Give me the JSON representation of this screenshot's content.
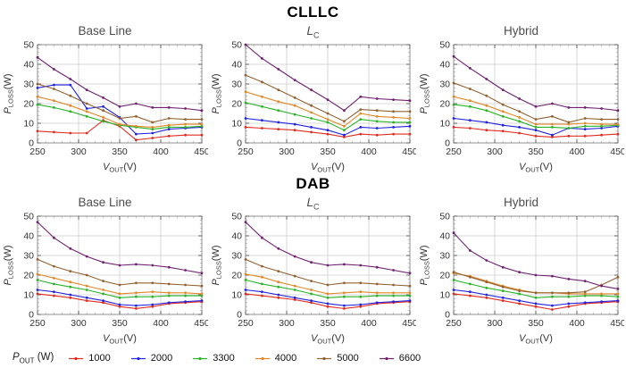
{
  "groups": [
    {
      "label": "CLLLC"
    },
    {
      "label": "DAB"
    }
  ],
  "legend": {
    "label_main": "P",
    "label_sub": "OUT",
    "label_unit": " (W)",
    "entries": [
      {
        "name": "1000",
        "color": "#e02b20"
      },
      {
        "name": "2000",
        "color": "#2222e0"
      },
      {
        "name": "3300",
        "color": "#28b428"
      },
      {
        "name": "4000",
        "color": "#e08828"
      },
      {
        "name": "5000",
        "color": "#926130"
      },
      {
        "name": "6600",
        "color": "#702270"
      }
    ]
  },
  "chart_data": [
    {
      "type": "line",
      "group": "CLLLC",
      "title_main": "Base Line",
      "title_sub": "",
      "title_italic": false,
      "xlabel_main": "V",
      "xlabel_sub": "OUT",
      "xlabel_unit": "(V)",
      "ylabel_main": "P",
      "ylabel_sub": "LOSS",
      "ylabel_unit": "(W)",
      "xlim": [
        250,
        450
      ],
      "ylim": [
        0,
        50
      ],
      "xticks": [
        250,
        300,
        350,
        400,
        450
      ],
      "yticks": [
        0,
        10,
        20,
        30,
        40,
        50
      ],
      "x_minor_step": 10,
      "y_minor_step": 2,
      "grid": true,
      "x": [
        250,
        270,
        290,
        310,
        330,
        350,
        370,
        390,
        410,
        430,
        450
      ],
      "series": [
        {
          "name": "1000",
          "color": "#e02b20",
          "values": [
            6,
            5.5,
            5,
            5,
            11.5,
            8.5,
            1.5,
            2.5,
            3.5,
            4,
            4
          ]
        },
        {
          "name": "2000",
          "color": "#2222e0",
          "values": [
            28,
            29.5,
            29.5,
            17.5,
            18.5,
            13,
            4.5,
            5,
            7,
            7.5,
            8
          ]
        },
        {
          "name": "3300",
          "color": "#28b428",
          "values": [
            19.5,
            18,
            16,
            13.5,
            11,
            9,
            8,
            7,
            8,
            8,
            8.5
          ]
        },
        {
          "name": "4000",
          "color": "#e08828",
          "values": [
            23.5,
            21.5,
            19,
            16,
            13,
            9.5,
            8.5,
            8,
            9,
            9.5,
            9.5
          ]
        },
        {
          "name": "5000",
          "color": "#926130",
          "values": [
            30,
            27.5,
            24,
            20,
            16.5,
            12.5,
            13.5,
            10.5,
            12.5,
            12,
            12
          ]
        },
        {
          "name": "6600",
          "color": "#702270",
          "values": [
            43.5,
            37.5,
            32.5,
            27,
            23,
            18.5,
            20,
            18,
            18,
            17.5,
            16.5
          ]
        }
      ]
    },
    {
      "type": "line",
      "group": "CLLLC",
      "title_main": "L",
      "title_sub": "C",
      "title_italic": true,
      "xlabel_main": "V",
      "xlabel_sub": "OUT",
      "xlabel_unit": "(V)",
      "ylabel_main": "P",
      "ylabel_sub": "LOSS",
      "ylabel_unit": "(W)",
      "xlim": [
        250,
        450
      ],
      "ylim": [
        0,
        50
      ],
      "xticks": [
        250,
        300,
        350,
        400,
        450
      ],
      "yticks": [
        0,
        10,
        20,
        30,
        40,
        50
      ],
      "x_minor_step": 10,
      "y_minor_step": 2,
      "grid": true,
      "x": [
        250,
        270,
        290,
        310,
        330,
        350,
        370,
        390,
        410,
        430,
        450
      ],
      "series": [
        {
          "name": "1000",
          "color": "#e02b20",
          "values": [
            8,
            7.5,
            7,
            6.5,
            5.5,
            4.5,
            3,
            4.5,
            4,
            4.5,
            4.5
          ]
        },
        {
          "name": "2000",
          "color": "#2222e0",
          "values": [
            12.5,
            11.5,
            10.5,
            9.5,
            8,
            6.5,
            4,
            8,
            7.5,
            8,
            8.5
          ]
        },
        {
          "name": "3300",
          "color": "#28b428",
          "values": [
            20.5,
            18.5,
            16.5,
            14.5,
            12.5,
            10.5,
            6.5,
            12,
            11,
            10.5,
            10.5
          ]
        },
        {
          "name": "4000",
          "color": "#e08828",
          "values": [
            26,
            23.5,
            21,
            19,
            15.5,
            12,
            8.5,
            15,
            13.5,
            13,
            12.5
          ]
        },
        {
          "name": "5000",
          "color": "#926130",
          "values": [
            34.5,
            31,
            27,
            23,
            19,
            15,
            11,
            17,
            16.5,
            16,
            16
          ]
        },
        {
          "name": "6600",
          "color": "#702270",
          "values": [
            50,
            43,
            37.5,
            32,
            27,
            22,
            16.5,
            23.5,
            22.5,
            22,
            21.5
          ]
        }
      ]
    },
    {
      "type": "line",
      "group": "CLLLC",
      "title_main": "Hybrid",
      "title_sub": "",
      "title_italic": false,
      "xlabel_main": "V",
      "xlabel_sub": "OUT",
      "xlabel_unit": "(V)",
      "ylabel_main": "P",
      "ylabel_sub": "LOSS",
      "ylabel_unit": "(W)",
      "xlim": [
        250,
        450
      ],
      "ylim": [
        0,
        50
      ],
      "xticks": [
        250,
        300,
        350,
        400,
        450
      ],
      "yticks": [
        0,
        10,
        20,
        30,
        40,
        50
      ],
      "x_minor_step": 10,
      "y_minor_step": 2,
      "grid": true,
      "x": [
        250,
        270,
        290,
        310,
        330,
        350,
        370,
        390,
        410,
        430,
        450
      ],
      "series": [
        {
          "name": "1000",
          "color": "#e02b20",
          "values": [
            8,
            7.5,
            6.5,
            6,
            5,
            3.5,
            3,
            3.5,
            3.5,
            4,
            4.5
          ]
        },
        {
          "name": "2000",
          "color": "#2222e0",
          "values": [
            12.5,
            11.5,
            10.5,
            9,
            8,
            6.5,
            4,
            7.5,
            7,
            7.5,
            8.5
          ]
        },
        {
          "name": "3300",
          "color": "#28b428",
          "values": [
            19.5,
            18.5,
            16.5,
            13.5,
            11,
            8,
            8,
            7.5,
            8.5,
            8.5,
            9
          ]
        },
        {
          "name": "4000",
          "color": "#e08828",
          "values": [
            23.5,
            21.5,
            19,
            16,
            13,
            9.5,
            9.5,
            9.5,
            10,
            9.5,
            9.5
          ]
        },
        {
          "name": "5000",
          "color": "#926130",
          "values": [
            30.5,
            27.5,
            24,
            19.5,
            16,
            12,
            13.5,
            10.5,
            12.5,
            12,
            12
          ]
        },
        {
          "name": "6600",
          "color": "#702270",
          "values": [
            44,
            38,
            32.5,
            27,
            22.5,
            18.5,
            20,
            18,
            18,
            17.5,
            16.5
          ]
        }
      ]
    },
    {
      "type": "line",
      "group": "DAB",
      "title_main": "Base Line",
      "title_sub": "",
      "title_italic": false,
      "xlabel_main": "V",
      "xlabel_sub": "OUT",
      "xlabel_unit": "(V)",
      "ylabel_main": "P",
      "ylabel_sub": "LOSS",
      "ylabel_unit": "(W)",
      "xlim": [
        250,
        450
      ],
      "ylim": [
        0,
        50
      ],
      "xticks": [
        250,
        300,
        350,
        400,
        450
      ],
      "yticks": [
        0,
        10,
        20,
        30,
        40,
        50
      ],
      "x_minor_step": 10,
      "y_minor_step": 2,
      "grid": true,
      "x": [
        250,
        270,
        290,
        310,
        330,
        350,
        370,
        390,
        410,
        430,
        450
      ],
      "series": [
        {
          "name": "1000",
          "color": "#e02b20",
          "values": [
            10.5,
            9.5,
            8.5,
            7,
            6,
            4,
            3,
            4,
            5.5,
            6,
            6.5
          ]
        },
        {
          "name": "2000",
          "color": "#2222e0",
          "values": [
            12.5,
            11.5,
            10,
            8.5,
            7,
            5,
            4.5,
            5,
            6,
            6.5,
            7
          ]
        },
        {
          "name": "3300",
          "color": "#28b428",
          "values": [
            17.5,
            15.5,
            14,
            12.5,
            10.5,
            8.5,
            9,
            9,
            9.5,
            9.5,
            9.5
          ]
        },
        {
          "name": "4000",
          "color": "#e08828",
          "values": [
            20.5,
            18.5,
            16.5,
            14.5,
            12.5,
            10.5,
            11,
            11.5,
            11,
            11,
            10.5
          ]
        },
        {
          "name": "5000",
          "color": "#926130",
          "values": [
            28,
            24.5,
            22,
            20,
            17,
            15,
            16,
            16,
            15.5,
            15,
            14.5
          ]
        },
        {
          "name": "6600",
          "color": "#702270",
          "values": [
            47,
            39,
            33.5,
            29.5,
            26.5,
            25,
            25.5,
            25,
            24,
            22.5,
            21
          ]
        }
      ]
    },
    {
      "type": "line",
      "group": "DAB",
      "title_main": "L",
      "title_sub": "C",
      "title_italic": true,
      "xlabel_main": "V",
      "xlabel_sub": "OUT",
      "xlabel_unit": "(V)",
      "ylabel_main": "P",
      "ylabel_sub": "LOSS",
      "ylabel_unit": "(W)",
      "xlim": [
        250,
        450
      ],
      "ylim": [
        0,
        50
      ],
      "xticks": [
        250,
        300,
        350,
        400,
        450
      ],
      "yticks": [
        0,
        10,
        20,
        30,
        40,
        50
      ],
      "x_minor_step": 10,
      "y_minor_step": 2,
      "grid": true,
      "x": [
        250,
        270,
        290,
        310,
        330,
        350,
        370,
        390,
        410,
        430,
        450
      ],
      "series": [
        {
          "name": "1000",
          "color": "#e02b20",
          "values": [
            10.5,
            9.5,
            8.5,
            7.5,
            6,
            4,
            3,
            4,
            5.5,
            6,
            6.5
          ]
        },
        {
          "name": "2000",
          "color": "#2222e0",
          "values": [
            12.5,
            11.5,
            10,
            8.5,
            7,
            5.5,
            4.5,
            5,
            6,
            6.5,
            7
          ]
        },
        {
          "name": "3300",
          "color": "#28b428",
          "values": [
            17.5,
            15.5,
            14,
            12.5,
            10.5,
            8.5,
            9,
            9,
            9.5,
            9.5,
            9.5
          ]
        },
        {
          "name": "4000",
          "color": "#e08828",
          "values": [
            20.5,
            19,
            16.5,
            14.5,
            12.5,
            10.5,
            11,
            11.5,
            11,
            11,
            11
          ]
        },
        {
          "name": "5000",
          "color": "#926130",
          "values": [
            28,
            24.5,
            22,
            19.5,
            17,
            15,
            16,
            16,
            15.5,
            15,
            14.5
          ]
        },
        {
          "name": "6600",
          "color": "#702270",
          "values": [
            47,
            39,
            33.5,
            29.5,
            26.5,
            25,
            25.5,
            25,
            24,
            22.5,
            21
          ]
        }
      ]
    },
    {
      "type": "line",
      "group": "DAB",
      "title_main": "Hybrid",
      "title_sub": "",
      "title_italic": false,
      "xlabel_main": "V",
      "xlabel_sub": "OUT",
      "xlabel_unit": "(V)",
      "ylabel_main": "P",
      "ylabel_sub": "LOSS",
      "ylabel_unit": "(W)",
      "xlim": [
        250,
        450
      ],
      "ylim": [
        0,
        50
      ],
      "xticks": [
        250,
        300,
        350,
        400,
        450
      ],
      "yticks": [
        0,
        10,
        20,
        30,
        40,
        50
      ],
      "x_minor_step": 10,
      "y_minor_step": 2,
      "grid": true,
      "x": [
        250,
        270,
        290,
        310,
        330,
        350,
        370,
        390,
        410,
        430,
        450
      ],
      "series": [
        {
          "name": "1000",
          "color": "#e02b20",
          "values": [
            10.5,
            9.5,
            8.5,
            7,
            5.5,
            4,
            2.5,
            4,
            5.5,
            6,
            6.5
          ]
        },
        {
          "name": "2000",
          "color": "#2222e0",
          "values": [
            12.5,
            11.5,
            10,
            8.5,
            7,
            5.5,
            4.5,
            5.5,
            6,
            6.5,
            7
          ]
        },
        {
          "name": "3300",
          "color": "#28b428",
          "values": [
            17.5,
            15.5,
            13.5,
            12,
            10.5,
            8.5,
            9,
            9,
            9.5,
            9.5,
            9
          ]
        },
        {
          "name": "4000",
          "color": "#e08828",
          "values": [
            21,
            19.5,
            17,
            14.5,
            12.5,
            11,
            11,
            10.5,
            10.5,
            10.5,
            10.5
          ]
        },
        {
          "name": "5000",
          "color": "#926130",
          "values": [
            21.5,
            19,
            16.5,
            14,
            12,
            11,
            11,
            11,
            11.5,
            15,
            19
          ]
        },
        {
          "name": "6600",
          "color": "#702270",
          "values": [
            41.5,
            32.5,
            27.5,
            24,
            21.5,
            20,
            19.5,
            18,
            17,
            14.5,
            13
          ]
        }
      ]
    }
  ]
}
